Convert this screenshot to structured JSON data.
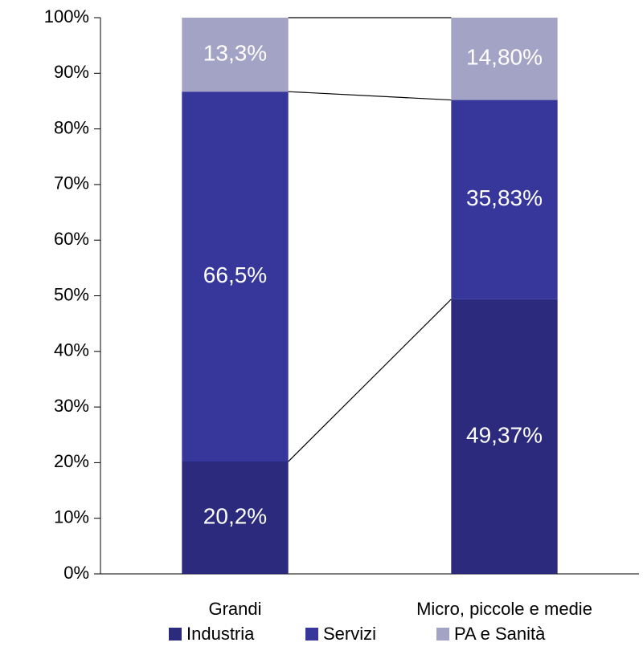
{
  "chart_data": {
    "type": "stacked_bar",
    "categories": [
      "Grandi",
      "Micro, piccole e medie"
    ],
    "series": [
      {
        "name": "Industria",
        "color": "#2b2a7c",
        "values": [
          20.2,
          49.37
        ],
        "value_labels": [
          "20,2%",
          "49,37%"
        ]
      },
      {
        "name": "Servizi",
        "color": "#37379b",
        "values": [
          66.5,
          35.83
        ],
        "value_labels": [
          "66,5%",
          "35,83%"
        ]
      },
      {
        "name": "PA e Sanità",
        "color": "#a3a3c6",
        "values": [
          13.3,
          14.8
        ],
        "value_labels": [
          "13,3%",
          "14,80%"
        ]
      }
    ],
    "ylim": [
      0,
      100
    ],
    "yticks": [
      {
        "value": 0,
        "label": "0%"
      },
      {
        "value": 10,
        "label": "10%"
      },
      {
        "value": 20,
        "label": "20%"
      },
      {
        "value": 30,
        "label": "30%"
      },
      {
        "value": 40,
        "label": "40%"
      },
      {
        "value": 50,
        "label": "50%"
      },
      {
        "value": 60,
        "label": "60%"
      },
      {
        "value": 70,
        "label": "70%"
      },
      {
        "value": 80,
        "label": "80%"
      },
      {
        "value": 90,
        "label": "90%"
      },
      {
        "value": 100,
        "label": "100%"
      }
    ],
    "grid": false,
    "legend": "bottom"
  }
}
